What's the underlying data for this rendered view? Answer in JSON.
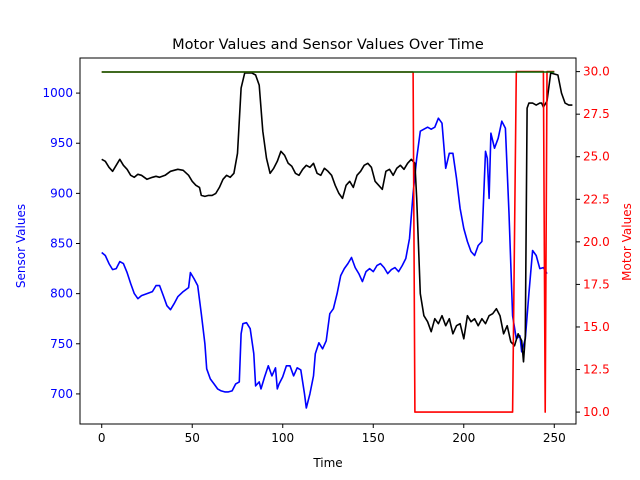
{
  "chart_data": {
    "type": "line",
    "title": "Motor Values and Sensor Values Over Time",
    "xlabel": "Time",
    "ylabel_left": "Sensor Values",
    "ylabel_right": "Motor Values",
    "xlim": [
      -12,
      262
    ],
    "ylim_left": [
      670,
      1035
    ],
    "ylim_right": [
      9.3,
      30.8
    ],
    "x_ticks": [
      0,
      50,
      100,
      150,
      200,
      250
    ],
    "x_tick_labels": [
      "0",
      "50",
      "100",
      "150",
      "200",
      "250"
    ],
    "y_left_ticks": [
      700,
      750,
      800,
      850,
      900,
      950,
      1000
    ],
    "y_left_tick_labels": [
      "700",
      "750",
      "800",
      "850",
      "900",
      "950",
      "1000"
    ],
    "y_right_ticks": [
      10.0,
      12.5,
      15.0,
      17.5,
      20.0,
      22.5,
      25.0,
      27.5,
      30.0
    ],
    "y_right_tick_labels": [
      "10.0",
      "12.5",
      "15.0",
      "17.5",
      "20.0",
      "22.5",
      "25.0",
      "27.5",
      "30.0"
    ],
    "colors": {
      "left_axis": "#0000ff",
      "right_axis": "#ff0000",
      "frame": "#000000"
    },
    "series": [
      {
        "axis": "left",
        "color": "#0000ff",
        "points": [
          [
            0,
            841
          ],
          [
            2,
            838
          ],
          [
            4,
            830
          ],
          [
            6,
            824
          ],
          [
            8,
            825
          ],
          [
            10,
            832
          ],
          [
            12,
            830
          ],
          [
            14,
            821
          ],
          [
            16,
            810
          ],
          [
            18,
            800
          ],
          [
            20,
            795
          ],
          [
            22,
            798
          ],
          [
            25,
            800
          ],
          [
            28,
            802
          ],
          [
            30,
            808
          ],
          [
            32,
            808
          ],
          [
            34,
            798
          ],
          [
            36,
            788
          ],
          [
            38,
            784
          ],
          [
            40,
            790
          ],
          [
            42,
            797
          ],
          [
            45,
            802
          ],
          [
            48,
            806
          ],
          [
            49,
            821
          ],
          [
            51,
            815
          ],
          [
            53,
            808
          ],
          [
            55,
            780
          ],
          [
            57,
            750
          ],
          [
            58,
            725
          ],
          [
            60,
            715
          ],
          [
            62,
            710
          ],
          [
            64,
            705
          ],
          [
            66,
            703
          ],
          [
            68,
            702
          ],
          [
            70,
            702
          ],
          [
            72,
            703
          ],
          [
            74,
            710
          ],
          [
            76,
            712
          ],
          [
            77,
            760
          ],
          [
            78,
            770
          ],
          [
            80,
            771
          ],
          [
            82,
            765
          ],
          [
            84,
            740
          ],
          [
            85,
            708
          ],
          [
            87,
            712
          ],
          [
            88,
            705
          ],
          [
            90,
            717
          ],
          [
            92,
            728
          ],
          [
            94,
            718
          ],
          [
            96,
            726
          ],
          [
            97,
            705
          ],
          [
            98,
            710
          ],
          [
            100,
            717
          ],
          [
            102,
            728
          ],
          [
            104,
            728
          ],
          [
            106,
            718
          ],
          [
            108,
            726
          ],
          [
            110,
            724
          ],
          [
            112,
            700
          ],
          [
            113,
            686
          ],
          [
            115,
            700
          ],
          [
            117,
            718
          ],
          [
            118,
            740
          ],
          [
            120,
            751
          ],
          [
            122,
            745
          ],
          [
            124,
            753
          ],
          [
            126,
            780
          ],
          [
            128,
            785
          ],
          [
            130,
            800
          ],
          [
            132,
            818
          ],
          [
            134,
            825
          ],
          [
            136,
            830
          ],
          [
            138,
            836
          ],
          [
            140,
            826
          ],
          [
            142,
            820
          ],
          [
            144,
            812
          ],
          [
            146,
            822
          ],
          [
            148,
            825
          ],
          [
            150,
            822
          ],
          [
            152,
            828
          ],
          [
            154,
            830
          ],
          [
            156,
            826
          ],
          [
            158,
            820
          ],
          [
            160,
            824
          ],
          [
            162,
            826
          ],
          [
            164,
            822
          ],
          [
            166,
            828
          ],
          [
            168,
            835
          ],
          [
            170,
            855
          ],
          [
            172,
            900
          ],
          [
            174,
            935
          ],
          [
            176,
            962
          ],
          [
            178,
            964
          ],
          [
            180,
            966
          ],
          [
            182,
            964
          ],
          [
            184,
            966
          ],
          [
            186,
            975
          ],
          [
            188,
            970
          ],
          [
            190,
            925
          ],
          [
            192,
            940
          ],
          [
            194,
            940
          ],
          [
            196,
            915
          ],
          [
            198,
            885
          ],
          [
            200,
            865
          ],
          [
            202,
            852
          ],
          [
            204,
            842
          ],
          [
            206,
            838
          ],
          [
            208,
            848
          ],
          [
            210,
            852
          ],
          [
            212,
            942
          ],
          [
            213,
            935
          ],
          [
            214,
            895
          ],
          [
            215,
            960
          ],
          [
            217,
            945
          ],
          [
            219,
            955
          ],
          [
            221,
            972
          ],
          [
            223,
            965
          ],
          [
            225,
            880
          ],
          [
            227,
            778
          ],
          [
            229,
            755
          ],
          [
            231,
            758
          ],
          [
            232,
            742
          ],
          [
            234,
            755
          ],
          [
            236,
            800
          ],
          [
            238,
            843
          ],
          [
            240,
            838
          ],
          [
            242,
            825
          ],
          [
            244,
            826
          ],
          [
            246,
            820
          ]
        ]
      },
      {
        "axis": "left",
        "color": "#000000",
        "points": [
          [
            0,
            934
          ],
          [
            2,
            932
          ],
          [
            4,
            926
          ],
          [
            6,
            922
          ],
          [
            8,
            928
          ],
          [
            10,
            934
          ],
          [
            12,
            928
          ],
          [
            14,
            924
          ],
          [
            16,
            918
          ],
          [
            18,
            916
          ],
          [
            20,
            919
          ],
          [
            22,
            918
          ],
          [
            25,
            914
          ],
          [
            28,
            916
          ],
          [
            30,
            917
          ],
          [
            32,
            916
          ],
          [
            35,
            918
          ],
          [
            38,
            922
          ],
          [
            40,
            923
          ],
          [
            42,
            924
          ],
          [
            45,
            923
          ],
          [
            48,
            918
          ],
          [
            50,
            912
          ],
          [
            52,
            908
          ],
          [
            54,
            906
          ],
          [
            55,
            898
          ],
          [
            57,
            897
          ],
          [
            59,
            898
          ],
          [
            61,
            898
          ],
          [
            63,
            900
          ],
          [
            65,
            906
          ],
          [
            67,
            914
          ],
          [
            69,
            918
          ],
          [
            71,
            916
          ],
          [
            73,
            920
          ],
          [
            75,
            940
          ],
          [
            77,
            1005
          ],
          [
            79,
            1020
          ],
          [
            81,
            1020
          ],
          [
            83,
            1020
          ],
          [
            85,
            1018
          ],
          [
            87,
            1008
          ],
          [
            89,
            962
          ],
          [
            91,
            935
          ],
          [
            93,
            920
          ],
          [
            95,
            925
          ],
          [
            97,
            932
          ],
          [
            99,
            942
          ],
          [
            101,
            938
          ],
          [
            103,
            930
          ],
          [
            105,
            927
          ],
          [
            107,
            920
          ],
          [
            109,
            918
          ],
          [
            111,
            924
          ],
          [
            113,
            928
          ],
          [
            115,
            926
          ],
          [
            117,
            930
          ],
          [
            119,
            920
          ],
          [
            121,
            918
          ],
          [
            123,
            925
          ],
          [
            125,
            922
          ],
          [
            127,
            918
          ],
          [
            129,
            908
          ],
          [
            131,
            900
          ],
          [
            133,
            895
          ],
          [
            135,
            908
          ],
          [
            137,
            912
          ],
          [
            139,
            906
          ],
          [
            141,
            918
          ],
          [
            143,
            922
          ],
          [
            145,
            928
          ],
          [
            147,
            930
          ],
          [
            149,
            926
          ],
          [
            151,
            912
          ],
          [
            153,
            908
          ],
          [
            155,
            904
          ],
          [
            157,
            922
          ],
          [
            159,
            924
          ],
          [
            161,
            918
          ],
          [
            163,
            925
          ],
          [
            165,
            928
          ],
          [
            167,
            924
          ],
          [
            169,
            930
          ],
          [
            171,
            934
          ],
          [
            173,
            930
          ],
          [
            174,
            895
          ],
          [
            176,
            800
          ],
          [
            178,
            778
          ],
          [
            180,
            772
          ],
          [
            182,
            762
          ],
          [
            184,
            775
          ],
          [
            186,
            770
          ],
          [
            188,
            778
          ],
          [
            190,
            768
          ],
          [
            192,
            775
          ],
          [
            194,
            760
          ],
          [
            196,
            768
          ],
          [
            198,
            770
          ],
          [
            200,
            755
          ],
          [
            202,
            778
          ],
          [
            204,
            772
          ],
          [
            206,
            775
          ],
          [
            208,
            768
          ],
          [
            210,
            775
          ],
          [
            212,
            770
          ],
          [
            214,
            778
          ],
          [
            216,
            780
          ],
          [
            218,
            785
          ],
          [
            220,
            778
          ],
          [
            222,
            760
          ],
          [
            224,
            768
          ],
          [
            226,
            752
          ],
          [
            228,
            748
          ],
          [
            230,
            760
          ],
          [
            232,
            753
          ],
          [
            233,
            732
          ],
          [
            234,
            758
          ],
          [
            235,
            985
          ],
          [
            236,
            990
          ],
          [
            238,
            990
          ],
          [
            240,
            988
          ],
          [
            242,
            990
          ],
          [
            243,
            990
          ],
          [
            244,
            986
          ],
          [
            246,
            992
          ],
          [
            248,
            1020
          ],
          [
            250,
            1019
          ],
          [
            252,
            1018
          ],
          [
            254,
            1000
          ],
          [
            256,
            990
          ],
          [
            258,
            988
          ],
          [
            260,
            988
          ]
        ]
      },
      {
        "axis": "right",
        "color": "#ff0000",
        "points": [
          [
            172,
            30
          ],
          [
            173,
            10
          ],
          [
            175,
            10
          ],
          [
            200,
            10
          ],
          [
            225,
            10
          ],
          [
            227,
            10
          ],
          [
            229,
            30
          ],
          [
            232,
            30
          ],
          [
            244,
            30
          ],
          [
            245,
            10
          ],
          [
            246,
            30
          ],
          [
            250,
            30
          ]
        ]
      },
      {
        "axis": "left",
        "color": "#ff0000",
        "points": [
          [
            0,
            1021
          ],
          [
            172,
            1021
          ]
        ]
      },
      {
        "axis": "left",
        "color": "#006400",
        "points": [
          [
            0,
            1021
          ],
          [
            250,
            1021
          ]
        ]
      }
    ]
  }
}
